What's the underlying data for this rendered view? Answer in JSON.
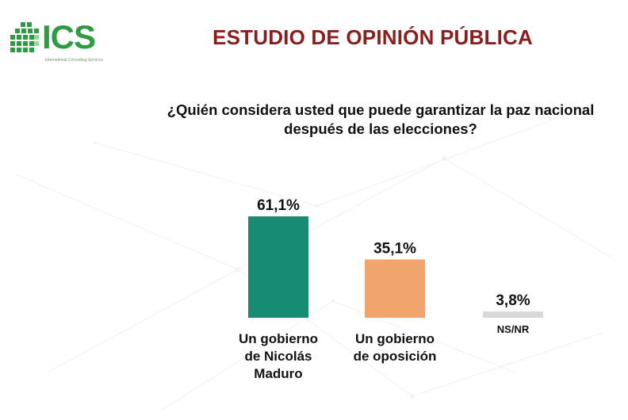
{
  "header": {
    "logo_text": "ICS",
    "logo_tagline": "International Consulting Services",
    "title": "ESTUDIO DE OPINIÓN PÚBLICA"
  },
  "question": "¿Quién considera usted que puede garantizar la paz nacional después de las elecciones?",
  "chart_data": {
    "type": "bar",
    "title": "¿Quién considera usted que puede garantizar la paz nacional después de las elecciones?",
    "categories": [
      [
        "Un gobierno",
        "de Nicolás",
        "Maduro"
      ],
      [
        "Un gobierno",
        "de oposición"
      ],
      [
        "NS/NR"
      ]
    ],
    "values": [
      61.1,
      35.1,
      3.8
    ],
    "value_labels": [
      "61,1%",
      "35,1%",
      "3,8%"
    ],
    "colors": [
      "#178c73",
      "#f0a46b",
      "#d9d9d9"
    ],
    "ylim": [
      0,
      61.1
    ],
    "grid": false,
    "legend": "none",
    "xlabel": "",
    "ylabel": ""
  }
}
